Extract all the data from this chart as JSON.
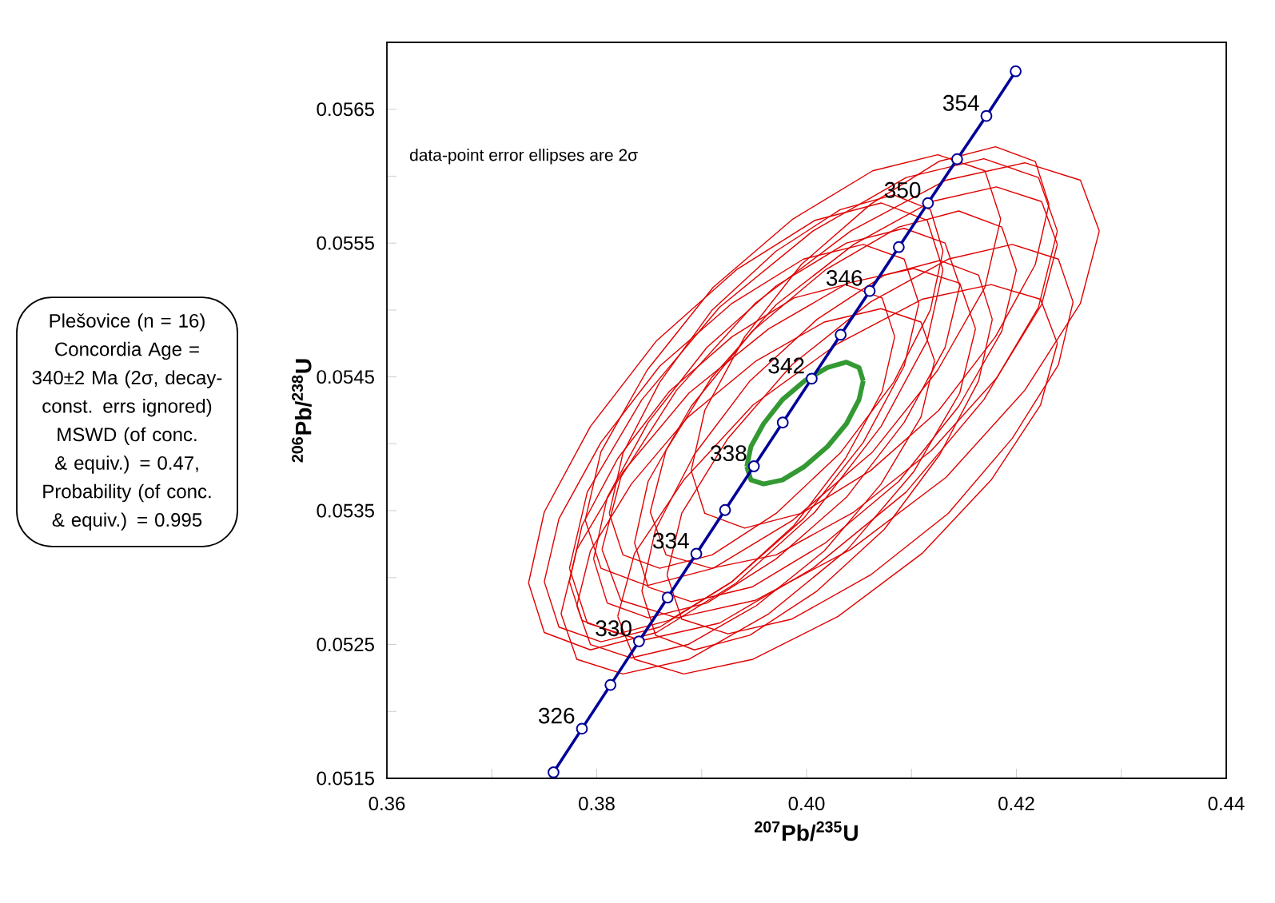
{
  "chart_data": {
    "type": "line",
    "xlabel": "$^{207}$Pb/$^{235}$U",
    "ylabel": "$^{206}$Pb/$^{238}$U",
    "xlim": [
      0.36,
      0.44
    ],
    "ylim": [
      0.0515,
      0.057
    ],
    "xticks": [
      {
        "value": 0.36,
        "label": "0.36"
      },
      {
        "value": 0.37,
        "label": null
      },
      {
        "value": 0.38,
        "label": "0.38"
      },
      {
        "value": 0.39,
        "label": null
      },
      {
        "value": 0.4,
        "label": "0.40"
      },
      {
        "value": 0.41,
        "label": null
      },
      {
        "value": 0.42,
        "label": "0.42"
      },
      {
        "value": 0.43,
        "label": null
      },
      {
        "value": 0.44,
        "label": "0.44"
      }
    ],
    "yticks": [
      {
        "value": 0.0515,
        "label": "0.0515"
      },
      {
        "value": 0.052,
        "label": null
      },
      {
        "value": 0.0525,
        "label": "0.0525"
      },
      {
        "value": 0.053,
        "label": null
      },
      {
        "value": 0.0535,
        "label": "0.0535"
      },
      {
        "value": 0.054,
        "label": null
      },
      {
        "value": 0.0545,
        "label": "0.0545"
      },
      {
        "value": 0.055,
        "label": null
      },
      {
        "value": 0.0555,
        "label": "0.0555"
      },
      {
        "value": 0.056,
        "label": null
      },
      {
        "value": 0.0565,
        "label": "0.0565"
      }
    ],
    "grid": false,
    "series": [
      {
        "color": "#e00000",
        "x": [
          0.3735,
          0.375,
          0.3794,
          0.3857,
          0.3933,
          0.4008,
          0.4071,
          0.4115,
          0.413
        ],
        "values": [
          0.05296,
          0.05349,
          0.05413,
          0.05477,
          0.0553,
          0.05567,
          0.0558,
          0.05567,
          0.0553
        ]
      },
      {
        "color": "#e00000",
        "x": [
          0.3735,
          0.375,
          0.3794,
          0.3857,
          0.3933,
          0.4008,
          0.4071,
          0.4115,
          0.413
        ],
        "values": [
          0.05296,
          0.05259,
          0.05246,
          0.05259,
          0.05296,
          0.05349,
          0.05413,
          0.05477,
          0.0553
        ]
      },
      {
        "color": "#e00000",
        "x": [
          0.3774,
          0.3791,
          0.3843,
          0.3917,
          0.4006,
          0.4095,
          0.4169,
          0.4221,
          0.4239
        ],
        "values": [
          0.05307,
          0.05364,
          0.05433,
          0.05502,
          0.05559,
          0.05599,
          0.05613,
          0.05599,
          0.05559
        ]
      },
      {
        "color": "#e00000",
        "x": [
          0.3774,
          0.3791,
          0.3843,
          0.3917,
          0.4006,
          0.4095,
          0.4169,
          0.4221,
          0.4239
        ],
        "values": [
          0.05307,
          0.05266,
          0.05253,
          0.05266,
          0.05307,
          0.05364,
          0.05433,
          0.05502,
          0.05559
        ]
      },
      {
        "color": "#e00000",
        "x": [
          0.3805,
          0.3823,
          0.3876,
          0.3951,
          0.4042,
          0.4133,
          0.4208,
          0.4261,
          0.4279
        ],
        "values": [
          0.05321,
          0.05375,
          0.0544,
          0.05505,
          0.05559,
          0.05597,
          0.0561,
          0.05597,
          0.05559
        ]
      },
      {
        "color": "#e00000",
        "x": [
          0.3805,
          0.3823,
          0.3876,
          0.3951,
          0.4042,
          0.4133,
          0.4208,
          0.4261,
          0.4279
        ],
        "values": [
          0.05321,
          0.05283,
          0.0527,
          0.05283,
          0.05321,
          0.05375,
          0.0544,
          0.05505,
          0.05559
        ]
      },
      {
        "color": "#e00000",
        "x": [
          0.3766,
          0.3781,
          0.3825,
          0.3888,
          0.3964,
          0.4039,
          0.4102,
          0.4146,
          0.4161
        ],
        "values": [
          0.05273,
          0.05321,
          0.05379,
          0.05438,
          0.05486,
          0.0552,
          0.05531,
          0.0552,
          0.05486
        ]
      },
      {
        "color": "#e00000",
        "x": [
          0.3766,
          0.3781,
          0.3825,
          0.3888,
          0.3964,
          0.4039,
          0.4102,
          0.4146,
          0.4161
        ],
        "values": [
          0.05273,
          0.05239,
          0.05228,
          0.05239,
          0.05273,
          0.05321,
          0.05379,
          0.05438,
          0.05486
        ]
      },
      {
        "color": "#e00000",
        "x": [
          0.382,
          0.3836,
          0.3883,
          0.3949,
          0.403,
          0.411,
          0.4176,
          0.4223,
          0.4239
        ],
        "values": [
          0.05271,
          0.05318,
          0.05373,
          0.05429,
          0.05475,
          0.05508,
          0.05519,
          0.05508,
          0.05475
        ]
      },
      {
        "color": "#e00000",
        "x": [
          0.382,
          0.3836,
          0.3883,
          0.3949,
          0.403,
          0.411,
          0.4176,
          0.4223,
          0.4239
        ],
        "values": [
          0.05271,
          0.05239,
          0.05228,
          0.05239,
          0.05271,
          0.05318,
          0.05373,
          0.05429,
          0.05475
        ]
      },
      {
        "color": "#e00000",
        "x": [
          0.3789,
          0.3804,
          0.3848,
          0.3911,
          0.3987,
          0.4063,
          0.4125,
          0.417,
          0.4185
        ],
        "values": [
          0.05343,
          0.05394,
          0.05455,
          0.05517,
          0.05568,
          0.05604,
          0.05616,
          0.05604,
          0.05568
        ]
      },
      {
        "color": "#e00000",
        "x": [
          0.3789,
          0.3804,
          0.3848,
          0.3911,
          0.3987,
          0.4063,
          0.4125,
          0.417,
          0.4185
        ],
        "values": [
          0.05343,
          0.05307,
          0.05294,
          0.05307,
          0.05343,
          0.05394,
          0.05455,
          0.05517,
          0.05568
        ]
      },
      {
        "color": "#e00000",
        "x": [
          0.3851,
          0.3866,
          0.3909,
          0.3971,
          0.4045,
          0.4119,
          0.4181,
          0.4224,
          0.4239
        ],
        "values": [
          0.05349,
          0.05395,
          0.05449,
          0.05504,
          0.05549,
          0.05581,
          0.05592,
          0.05581,
          0.05549
        ]
      },
      {
        "color": "#e00000",
        "x": [
          0.3851,
          0.3866,
          0.3909,
          0.3971,
          0.4045,
          0.4119,
          0.4181,
          0.4224,
          0.4239
        ],
        "values": [
          0.05349,
          0.05317,
          0.05307,
          0.05317,
          0.05349,
          0.05395,
          0.05449,
          0.05504,
          0.05549
        ]
      },
      {
        "color": "#e00000",
        "x": [
          0.375,
          0.3764,
          0.3804,
          0.386,
          0.3929,
          0.3997,
          0.4054,
          0.4093,
          0.4107
        ],
        "values": [
          0.05297,
          0.05344,
          0.05401,
          0.05458,
          0.05505,
          0.05538,
          0.05549,
          0.05538,
          0.05505
        ]
      },
      {
        "color": "#e00000",
        "x": [
          0.375,
          0.3764,
          0.3804,
          0.386,
          0.3929,
          0.3997,
          0.4054,
          0.4093,
          0.4107
        ],
        "values": [
          0.05297,
          0.05263,
          0.05252,
          0.05263,
          0.05297,
          0.05344,
          0.05401,
          0.05458,
          0.05505
        ]
      },
      {
        "color": "#e00000",
        "x": [
          0.3797,
          0.381,
          0.3849,
          0.3905,
          0.3971,
          0.4038,
          0.4093,
          0.4132,
          0.4146
        ],
        "values": [
          0.05314,
          0.0536,
          0.05416,
          0.05472,
          0.05518,
          0.0555,
          0.05561,
          0.0555,
          0.05518
        ]
      },
      {
        "color": "#e00000",
        "x": [
          0.3797,
          0.381,
          0.3849,
          0.3905,
          0.3971,
          0.4038,
          0.4093,
          0.4132,
          0.4146
        ],
        "values": [
          0.05314,
          0.05281,
          0.0527,
          0.05281,
          0.05314,
          0.0536,
          0.05416,
          0.05472,
          0.05518
        ]
      },
      {
        "color": "#e00000",
        "x": [
          0.3836,
          0.3849,
          0.389,
          0.3948,
          0.4018,
          0.4088,
          0.4145,
          0.4186,
          0.42
        ],
        "values": [
          0.05326,
          0.05372,
          0.05428,
          0.05484,
          0.0553,
          0.05562,
          0.05574,
          0.05562,
          0.0553
        ]
      },
      {
        "color": "#e00000",
        "x": [
          0.3836,
          0.3849,
          0.389,
          0.3948,
          0.4018,
          0.4088,
          0.4145,
          0.4186,
          0.42
        ],
        "values": [
          0.05326,
          0.05293,
          0.05282,
          0.05293,
          0.05326,
          0.05372,
          0.05428,
          0.05484,
          0.0553
        ]
      },
      {
        "color": "#e00000",
        "x": [
          0.3781,
          0.3794,
          0.3833,
          0.3887,
          0.3952,
          0.4017,
          0.4071,
          0.4109,
          0.4122
        ],
        "values": [
          0.05279,
          0.0532,
          0.0537,
          0.0542,
          0.05462,
          0.05491,
          0.05501,
          0.05491,
          0.05462
        ]
      },
      {
        "color": "#e00000",
        "x": [
          0.3781,
          0.3794,
          0.3833,
          0.3887,
          0.3952,
          0.4017,
          0.4071,
          0.4109,
          0.4122
        ],
        "values": [
          0.05279,
          0.0525,
          0.0524,
          0.0525,
          0.05279,
          0.0532,
          0.0537,
          0.0542,
          0.05462
        ]
      },
      {
        "color": "#e00000",
        "x": [
          0.3867,
          0.3881,
          0.3925,
          0.3986,
          0.4061,
          0.4135,
          0.4196,
          0.424,
          0.4254
        ],
        "values": [
          0.05302,
          0.05348,
          0.05404,
          0.05459,
          0.05506,
          0.05538,
          0.05549,
          0.05538,
          0.05506
        ]
      },
      {
        "color": "#e00000",
        "x": [
          0.3867,
          0.3881,
          0.3925,
          0.3986,
          0.4061,
          0.4135,
          0.4196,
          0.424,
          0.4254
        ],
        "values": [
          0.05302,
          0.05269,
          0.05258,
          0.05269,
          0.05302,
          0.05348,
          0.05404,
          0.05459,
          0.05506
        ]
      },
      {
        "color": "#e00000",
        "x": [
          0.389,
          0.3903,
          0.3941,
          0.3995,
          0.4061,
          0.4126,
          0.418,
          0.4218,
          0.4231
        ],
        "values": [
          0.0538,
          0.05425,
          0.0548,
          0.05534,
          0.05579,
          0.05611,
          0.05622,
          0.05611,
          0.05579
        ]
      },
      {
        "color": "#e00000",
        "x": [
          0.389,
          0.3903,
          0.3941,
          0.3995,
          0.4061,
          0.4126,
          0.418,
          0.4218,
          0.4231
        ],
        "values": [
          0.0538,
          0.05348,
          0.05337,
          0.05348,
          0.0538,
          0.05425,
          0.0548,
          0.05534,
          0.05579
        ]
      },
      {
        "color": "#e00000",
        "x": [
          0.3774,
          0.3786,
          0.382,
          0.3869,
          0.3929,
          0.3988,
          0.4037,
          0.4072,
          0.4084
        ],
        "values": [
          0.05297,
          0.05339,
          0.05389,
          0.05439,
          0.0548,
          0.05509,
          0.05519,
          0.05509,
          0.0548
        ]
      },
      {
        "color": "#e00000",
        "x": [
          0.3774,
          0.3786,
          0.382,
          0.3869,
          0.3929,
          0.3988,
          0.4037,
          0.4072,
          0.4084
        ],
        "values": [
          0.05297,
          0.05268,
          0.05258,
          0.05268,
          0.05297,
          0.05339,
          0.05389,
          0.05439,
          0.0548
        ]
      },
      {
        "color": "#e00000",
        "x": [
          0.3843,
          0.3856,
          0.3893,
          0.3946,
          0.401,
          0.4074,
          0.4127,
          0.4164,
          0.4177
        ],
        "values": [
          0.0529,
          0.05336,
          0.05392,
          0.05447,
          0.05493,
          0.05526,
          0.05537,
          0.05526,
          0.05493
        ]
      },
      {
        "color": "#e00000",
        "x": [
          0.3843,
          0.3856,
          0.3893,
          0.3946,
          0.401,
          0.4074,
          0.4127,
          0.4164,
          0.4177
        ],
        "values": [
          0.0529,
          0.05257,
          0.05246,
          0.05257,
          0.0529,
          0.05336,
          0.05392,
          0.05447,
          0.05493
        ]
      },
      {
        "color": "#e00000",
        "x": [
          0.3812,
          0.3825,
          0.386,
          0.391,
          0.3971,
          0.4032,
          0.4083,
          0.4118,
          0.413
        ],
        "values": [
          0.05348,
          0.05393,
          0.05446,
          0.055,
          0.05544,
          0.05575,
          0.05586,
          0.05575,
          0.05544
        ]
      },
      {
        "color": "#e00000",
        "x": [
          0.3812,
          0.3825,
          0.386,
          0.391,
          0.3971,
          0.4032,
          0.4083,
          0.4118,
          0.413
        ],
        "values": [
          0.05348,
          0.05317,
          0.05307,
          0.05317,
          0.05348,
          0.05393,
          0.05446,
          0.055,
          0.05544
        ]
      },
      {
        "color": "#339933",
        "x": [
          0.3943,
          0.3947,
          0.3959,
          0.3977,
          0.3998,
          0.402,
          0.4038,
          0.405,
          0.4054
        ],
        "values": [
          0.05383,
          0.05398,
          0.05415,
          0.05433,
          0.05447,
          0.05457,
          0.05461,
          0.05457,
          0.05447
        ]
      },
      {
        "color": "#339933",
        "x": [
          0.3943,
          0.3947,
          0.3959,
          0.3977,
          0.3998,
          0.402,
          0.4038,
          0.405,
          0.4054
        ],
        "values": [
          0.05383,
          0.05373,
          0.0537,
          0.05373,
          0.05383,
          0.05398,
          0.05415,
          0.05433,
          0.05447
        ]
      },
      {
        "color": "#000099",
        "marker": "circle",
        "x": [
          0.37588,
          0.37859,
          0.38131,
          0.38403,
          0.38676,
          0.38949,
          0.39223,
          0.39498,
          0.39773,
          0.40049,
          0.40325,
          0.40602,
          0.40879,
          0.41157,
          0.41435,
          0.41714,
          0.41993
        ],
        "values": [
          0.051545,
          0.051871,
          0.052198,
          0.052524,
          0.052851,
          0.053178,
          0.053505,
          0.053832,
          0.054159,
          0.054487,
          0.054815,
          0.055142,
          0.05547,
          0.055799,
          0.056127,
          0.05645,
          0.056784
        ]
      }
    ],
    "annotations": [
      {
        "text": "326",
        "x": 0.37859,
        "y": 0.051871
      },
      {
        "text": "330",
        "x": 0.38403,
        "y": 0.052524
      },
      {
        "text": "334",
        "x": 0.38949,
        "y": 0.053178
      },
      {
        "text": "338",
        "x": 0.39498,
        "y": 0.053832
      },
      {
        "text": "342",
        "x": 0.40049,
        "y": 0.054487
      },
      {
        "text": "346",
        "x": 0.40602,
        "y": 0.055142
      },
      {
        "text": "350",
        "x": 0.41157,
        "y": 0.055799
      },
      {
        "text": "354",
        "x": 0.41714,
        "y": 0.05645
      },
      "data-point error ellipses are 2σ",
      "Plešovice (n = 16) Concordia Age = 340±2 Ma (2σ, decay-const. errs ignored) MSWD (of conc. & equiv.) = 0.47, Probability (of conc. & equiv.) = 0.995"
    ]
  }
}
